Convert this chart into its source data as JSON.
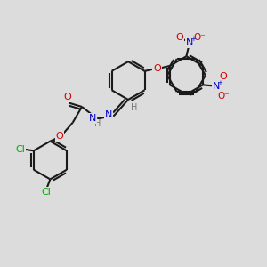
{
  "bg_color": "#dcdcdc",
  "bond_color": "#1a1a1a",
  "bond_width": 1.5,
  "atom_colors": {
    "C": "#1a1a1a",
    "N": "#0000cc",
    "O": "#cc0000",
    "Cl": "#00aa00",
    "H": "#777777"
  },
  "font_size": 7.5,
  "figsize": [
    3.0,
    3.0
  ],
  "dpi": 100
}
